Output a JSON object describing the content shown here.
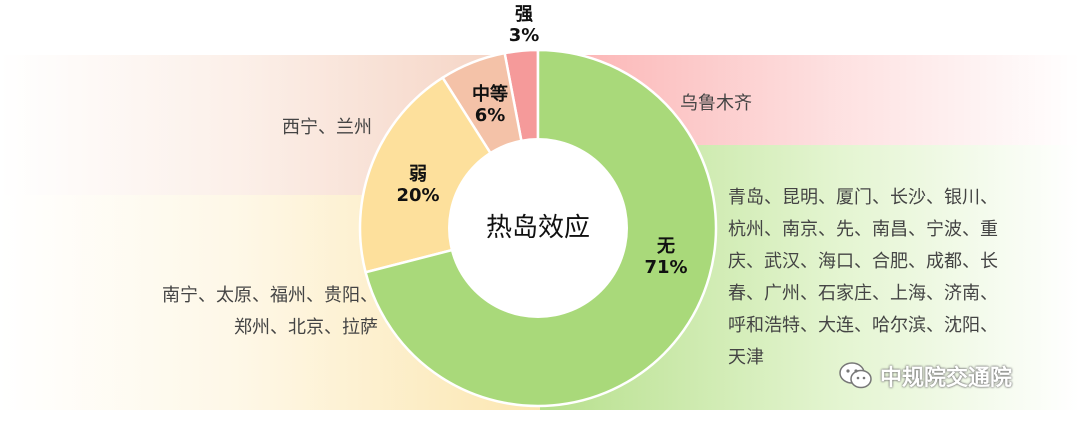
{
  "chart_data": {
    "type": "pie",
    "title": "热岛效应",
    "slices": [
      {
        "label": "强",
        "value": 3,
        "value_label": "3%",
        "color": "#F59A9A",
        "cities": "乌鲁木齐"
      },
      {
        "label": "中等",
        "value": 6,
        "value_label": "6%",
        "color": "#F4C2A8",
        "cities": "西宁、兰州"
      },
      {
        "label": "弱",
        "value": 20,
        "value_label": "20%",
        "color": "#FDE09C",
        "cities": "南宁、太原、福州、贵阳、郑州、北京、拉萨"
      },
      {
        "label": "无",
        "value": 71,
        "value_label": "71%",
        "color": "#A9D97A",
        "cities": "青岛、昆明、厦门、长沙、银川、杭州、南京、先、南昌、宁波、重庆、武汉、海口、合肥、成都、长春、广州、石家庄、上海、济南、呼和浩特、大连、哈尔滨、沈阳、天津"
      }
    ]
  },
  "labels": {
    "strong_lines": [
      "强",
      "3%"
    ],
    "medium_lines": [
      "中等",
      "6%"
    ],
    "weak_lines": [
      "弱",
      "20%"
    ],
    "none_lines": [
      "无",
      "71%"
    ]
  },
  "cities": {
    "strong": [
      "乌鲁木齐"
    ],
    "medium": [
      "西宁、兰州"
    ],
    "weak": [
      "南宁、太原、福州、贵阳、",
      "郑州、北京、拉萨"
    ],
    "none": [
      "青岛、昆明、厦门、长沙、银川、",
      "杭州、南京、先、南昌、宁波、重",
      "庆、武汉、海口、合肥、成都、长",
      "春、广州、石家庄、上海、济南、",
      "呼和浩特、大连、哈尔滨、沈阳、",
      "天津"
    ]
  },
  "watermark": {
    "text": "中规院交通院",
    "icon": "wechat-icon"
  },
  "colors": {
    "stroke": "#ffffff",
    "center": "#ffffff",
    "label_text": "#111111"
  }
}
